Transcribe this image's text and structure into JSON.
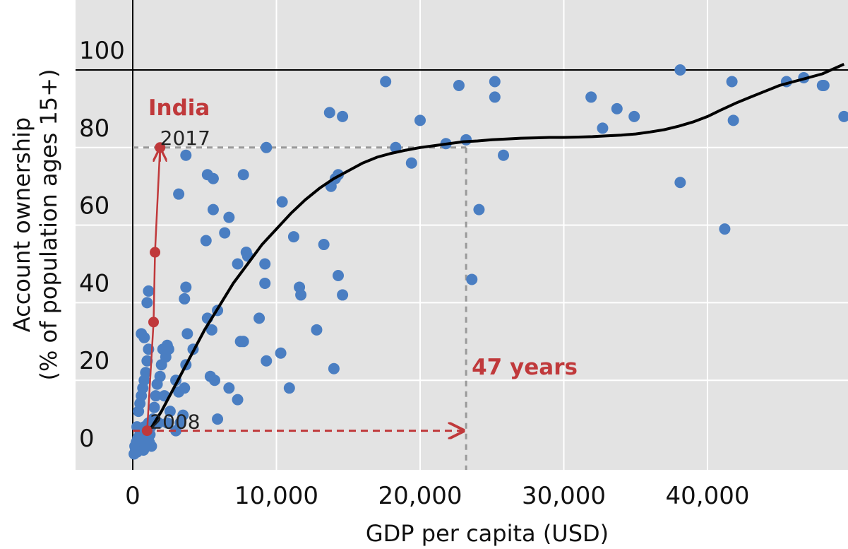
{
  "chart_data": {
    "type": "scatter",
    "title": "",
    "xlabel": "GDP per capita (USD)",
    "ylabel_line1": "Account ownership",
    "ylabel_line2": "(% of population ages 15+)",
    "xlim": [
      -3000,
      49500
    ],
    "ylim": [
      -2,
      122
    ],
    "xticks": [
      0,
      10000,
      20000,
      30000,
      40000
    ],
    "xtick_labels": [
      "0",
      "10,000",
      "20,000",
      "30,000",
      "40,000"
    ],
    "yticks": [
      0,
      20,
      40,
      60,
      80,
      100
    ],
    "ytick_labels": [
      "0",
      "20",
      "40",
      "60",
      "80",
      "100"
    ],
    "grid": true,
    "background": "#e3e3e3",
    "point_color": "#4a7ec2",
    "accent_color": "#c0393b",
    "curve_color": "#000000",
    "reference_line_y": 100,
    "points": [
      [
        100,
        1
      ],
      [
        150,
        3
      ],
      [
        200,
        2
      ],
      [
        250,
        4
      ],
      [
        300,
        1.5
      ],
      [
        350,
        5
      ],
      [
        400,
        3
      ],
      [
        450,
        2
      ],
      [
        500,
        6
      ],
      [
        550,
        4
      ],
      [
        600,
        3
      ],
      [
        650,
        7
      ],
      [
        700,
        5
      ],
      [
        750,
        2
      ],
      [
        800,
        8
      ],
      [
        850,
        4
      ],
      [
        900,
        6
      ],
      [
        950,
        3
      ],
      [
        1000,
        5
      ],
      [
        1050,
        7
      ],
      [
        1100,
        9
      ],
      [
        1150,
        4
      ],
      [
        1200,
        6
      ],
      [
        1250,
        8
      ],
      [
        1300,
        3
      ],
      [
        300,
        8
      ],
      [
        400,
        12
      ],
      [
        500,
        14
      ],
      [
        600,
        16
      ],
      [
        700,
        18
      ],
      [
        800,
        20
      ],
      [
        900,
        22
      ],
      [
        1000,
        25
      ],
      [
        1100,
        28
      ],
      [
        600,
        32
      ],
      [
        800,
        31
      ],
      [
        1000,
        40
      ],
      [
        1100,
        43
      ],
      [
        1500,
        13
      ],
      [
        1600,
        16
      ],
      [
        1700,
        19
      ],
      [
        1900,
        21
      ],
      [
        2000,
        24
      ],
      [
        2100,
        28
      ],
      [
        2300,
        26
      ],
      [
        2400,
        29
      ],
      [
        2500,
        28
      ],
      [
        1800,
        9
      ],
      [
        2200,
        16
      ],
      [
        2600,
        12
      ],
      [
        3000,
        20
      ],
      [
        3200,
        17
      ],
      [
        3500,
        11
      ],
      [
        3300,
        9
      ],
      [
        3600,
        18
      ],
      [
        3700,
        24
      ],
      [
        3800,
        32
      ],
      [
        3600,
        41
      ],
      [
        3700,
        44
      ],
      [
        4200,
        28
      ],
      [
        3000,
        7
      ],
      [
        2400,
        9
      ],
      [
        1400,
        10
      ],
      [
        3700,
        78
      ],
      [
        3200,
        68
      ],
      [
        5200,
        73
      ],
      [
        5600,
        72
      ],
      [
        5600,
        64
      ],
      [
        5100,
        56
      ],
      [
        6400,
        58
      ],
      [
        6700,
        62
      ],
      [
        7700,
        73
      ],
      [
        7300,
        50
      ],
      [
        7900,
        53
      ],
      [
        8000,
        52
      ],
      [
        9200,
        50
      ],
      [
        9200,
        45
      ],
      [
        9300,
        80
      ],
      [
        8800,
        36
      ],
      [
        7500,
        30
      ],
      [
        7700,
        30
      ],
      [
        5200,
        36
      ],
      [
        5500,
        33
      ],
      [
        5900,
        38
      ],
      [
        5400,
        21
      ],
      [
        5700,
        20
      ],
      [
        5900,
        10
      ],
      [
        6700,
        18
      ],
      [
        7300,
        15
      ],
      [
        9300,
        25
      ],
      [
        10300,
        27
      ],
      [
        10400,
        66
      ],
      [
        10900,
        18
      ],
      [
        11200,
        57
      ],
      [
        11600,
        44
      ],
      [
        11700,
        42
      ],
      [
        12800,
        33
      ],
      [
        13300,
        55
      ],
      [
        13800,
        70
      ],
      [
        14100,
        72
      ],
      [
        14300,
        73
      ],
      [
        14300,
        47
      ],
      [
        14000,
        23
      ],
      [
        14600,
        42
      ],
      [
        13700,
        89
      ],
      [
        14600,
        88
      ],
      [
        18300,
        80
      ],
      [
        17600,
        97
      ],
      [
        19400,
        76
      ],
      [
        20000,
        87
      ],
      [
        21800,
        81
      ],
      [
        22700,
        96
      ],
      [
        23200,
        82
      ],
      [
        23600,
        46
      ],
      [
        24100,
        64
      ],
      [
        25800,
        78
      ],
      [
        25200,
        93
      ],
      [
        25200,
        97
      ],
      [
        31900,
        93
      ],
      [
        32700,
        85
      ],
      [
        33700,
        90
      ],
      [
        34900,
        88
      ],
      [
        38100,
        100
      ],
      [
        38100,
        71
      ],
      [
        41700,
        97
      ],
      [
        41800,
        87
      ],
      [
        41200,
        59
      ],
      [
        45500,
        97
      ],
      [
        46700,
        98
      ],
      [
        48000,
        96
      ],
      [
        48100,
        96
      ],
      [
        49500,
        88
      ]
    ],
    "fit_curve": [
      [
        1000,
        6
      ],
      [
        2000,
        12
      ],
      [
        3000,
        19
      ],
      [
        4000,
        26
      ],
      [
        5000,
        33
      ],
      [
        6000,
        39
      ],
      [
        7000,
        45
      ],
      [
        8000,
        50
      ],
      [
        9000,
        55
      ],
      [
        10000,
        59
      ],
      [
        11000,
        63
      ],
      [
        12000,
        66.5
      ],
      [
        13000,
        69.5
      ],
      [
        14000,
        72
      ],
      [
        15000,
        74
      ],
      [
        16000,
        76
      ],
      [
        17000,
        77.5
      ],
      [
        18000,
        78.5
      ],
      [
        19000,
        79.3
      ],
      [
        20000,
        80
      ],
      [
        21000,
        80.5
      ],
      [
        22000,
        81
      ],
      [
        23000,
        81.5
      ],
      [
        24000,
        81.7
      ],
      [
        25000,
        82
      ],
      [
        26000,
        82.2
      ],
      [
        27000,
        82.4
      ],
      [
        28000,
        82.5
      ],
      [
        29000,
        82.6
      ],
      [
        30000,
        82.6
      ],
      [
        31000,
        82.7
      ],
      [
        32000,
        82.8
      ],
      [
        33000,
        83
      ],
      [
        34000,
        83.2
      ],
      [
        35000,
        83.5
      ],
      [
        36000,
        84
      ],
      [
        37000,
        84.6
      ],
      [
        38000,
        85.5
      ],
      [
        39000,
        86.6
      ],
      [
        40000,
        88
      ],
      [
        41000,
        89.8
      ],
      [
        42000,
        91.5
      ],
      [
        43000,
        93
      ],
      [
        44000,
        94.5
      ],
      [
        45000,
        96
      ],
      [
        46000,
        97
      ],
      [
        47000,
        98
      ],
      [
        48000,
        99
      ],
      [
        49500,
        101.5
      ]
    ],
    "india": {
      "label": "India",
      "gdp": 1900,
      "years": [
        {
          "year": "2008",
          "gdp": 1000,
          "value": 7
        },
        {
          "year": "2011",
          "gdp": 1450,
          "value": 35
        },
        {
          "year": "2014",
          "gdp": 1550,
          "value": 53
        },
        {
          "year": "2017",
          "gdp": 1900,
          "value": 80
        }
      ],
      "start_label": "2008",
      "end_label": "2017",
      "reference_gdp": 23200,
      "reference_value": 80,
      "gap_label": "47 years"
    }
  }
}
